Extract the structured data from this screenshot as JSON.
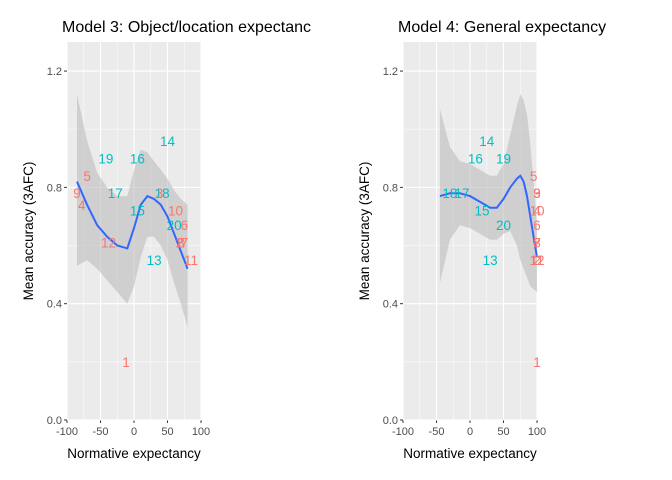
{
  "chart_data": [
    {
      "type": "scatter",
      "title": "Model 3: Object/location expectanc",
      "xlabel": "Normative expectancy",
      "ylabel": "Mean accuracy (3AFC)",
      "xlim": [
        -100,
        100
      ],
      "ylim": [
        0.0,
        1.3
      ],
      "xticks": [
        "-100",
        "-50",
        "0",
        "50",
        "100"
      ],
      "yticks": [
        "0.0",
        "0.4",
        "0.8",
        "1.2"
      ],
      "grid": true,
      "colors": {
        "red": "#f8766d",
        "teal": "#00bfc4",
        "smooth": "#3366ff",
        "band": "#bdbdbd",
        "panel": "#ebebeb"
      },
      "points": [
        {
          "label": "1",
          "x": -12,
          "y": 0.2,
          "color": "red"
        },
        {
          "label": "5",
          "x": -70,
          "y": 0.84,
          "color": "red"
        },
        {
          "label": "9",
          "x": -85,
          "y": 0.78,
          "color": "red"
        },
        {
          "label": "4",
          "x": -78,
          "y": 0.74,
          "color": "red"
        },
        {
          "label": "12",
          "x": -38,
          "y": 0.61,
          "color": "red"
        },
        {
          "label": "19",
          "x": -42,
          "y": 0.9,
          "color": "teal"
        },
        {
          "label": "16",
          "x": 5,
          "y": 0.9,
          "color": "teal"
        },
        {
          "label": "14",
          "x": 50,
          "y": 0.96,
          "color": "teal"
        },
        {
          "label": "17",
          "x": -28,
          "y": 0.78,
          "color": "teal"
        },
        {
          "label": "15",
          "x": 5,
          "y": 0.72,
          "color": "teal"
        },
        {
          "label": "18",
          "x": 42,
          "y": 0.78,
          "color": "teal"
        },
        {
          "label": "3",
          "x": 38,
          "y": 0.78,
          "color": "red"
        },
        {
          "label": "10",
          "x": 62,
          "y": 0.72,
          "color": "red"
        },
        {
          "label": "20",
          "x": 60,
          "y": 0.67,
          "color": "teal"
        },
        {
          "label": "6",
          "x": 75,
          "y": 0.67,
          "color": "red"
        },
        {
          "label": "2",
          "x": 68,
          "y": 0.61,
          "color": "red"
        },
        {
          "label": "7",
          "x": 75,
          "y": 0.61,
          "color": "red"
        },
        {
          "label": "8",
          "x": 70,
          "y": 0.61,
          "color": "red"
        },
        {
          "label": "13",
          "x": 30,
          "y": 0.55,
          "color": "teal"
        },
        {
          "label": "11",
          "x": 85,
          "y": 0.55,
          "color": "red"
        }
      ],
      "smooth_x": [
        -85,
        -70,
        -55,
        -40,
        -25,
        -10,
        0,
        10,
        20,
        30,
        40,
        50,
        60,
        70,
        80
      ],
      "smooth_y": [
        0.82,
        0.74,
        0.67,
        0.63,
        0.6,
        0.59,
        0.66,
        0.74,
        0.77,
        0.76,
        0.74,
        0.7,
        0.64,
        0.58,
        0.52
      ],
      "smooth_lower": [
        0.53,
        0.55,
        0.52,
        0.48,
        0.44,
        0.4,
        0.46,
        0.56,
        0.63,
        0.63,
        0.6,
        0.55,
        0.47,
        0.4,
        0.32
      ],
      "smooth_upper": [
        1.12,
        0.96,
        0.85,
        0.8,
        0.77,
        0.77,
        0.86,
        0.93,
        0.92,
        0.89,
        0.86,
        0.83,
        0.79,
        0.76,
        0.74
      ]
    },
    {
      "type": "scatter",
      "title": "Model 4: General expectancy",
      "xlabel": "Normative expectancy",
      "ylabel": "Mean accuracy (3AFC)",
      "xlim": [
        -100,
        100
      ],
      "ylim": [
        0.0,
        1.3
      ],
      "xticks": [
        "-100",
        "-50",
        "0",
        "50",
        "100"
      ],
      "yticks": [
        "0.0",
        "0.4",
        "0.8",
        "1.2"
      ],
      "grid": true,
      "colors": {
        "red": "#f8766d",
        "teal": "#00bfc4",
        "smooth": "#3366ff",
        "band": "#bdbdbd",
        "panel": "#ebebeb"
      },
      "points": [
        {
          "label": "14",
          "x": 25,
          "y": 0.96,
          "color": "teal"
        },
        {
          "label": "16",
          "x": 8,
          "y": 0.9,
          "color": "teal"
        },
        {
          "label": "19",
          "x": 50,
          "y": 0.9,
          "color": "teal"
        },
        {
          "label": "18",
          "x": -30,
          "y": 0.78,
          "color": "teal"
        },
        {
          "label": "17",
          "x": -12,
          "y": 0.78,
          "color": "teal"
        },
        {
          "label": "15",
          "x": 18,
          "y": 0.72,
          "color": "teal"
        },
        {
          "label": "20",
          "x": 50,
          "y": 0.67,
          "color": "teal"
        },
        {
          "label": "13",
          "x": 30,
          "y": 0.55,
          "color": "teal"
        },
        {
          "label": "5",
          "x": 95,
          "y": 0.84,
          "color": "red"
        },
        {
          "label": "9",
          "x": 100,
          "y": 0.78,
          "color": "red"
        },
        {
          "label": "3",
          "x": 100,
          "y": 0.78,
          "color": "red"
        },
        {
          "label": "4",
          "x": 100,
          "y": 0.72,
          "color": "red"
        },
        {
          "label": "10",
          "x": 100,
          "y": 0.72,
          "color": "red"
        },
        {
          "label": "6",
          "x": 100,
          "y": 0.67,
          "color": "red"
        },
        {
          "label": "7",
          "x": 100,
          "y": 0.61,
          "color": "red"
        },
        {
          "label": "8",
          "x": 100,
          "y": 0.61,
          "color": "red"
        },
        {
          "label": "2",
          "x": 100,
          "y": 0.55,
          "color": "red"
        },
        {
          "label": "12",
          "x": 100,
          "y": 0.55,
          "color": "red"
        },
        {
          "label": "11",
          "x": 100,
          "y": 0.55,
          "color": "red"
        },
        {
          "label": "1",
          "x": 100,
          "y": 0.2,
          "color": "red"
        }
      ],
      "smooth_x": [
        -45,
        -30,
        -15,
        0,
        15,
        30,
        40,
        50,
        60,
        70,
        75,
        80,
        85,
        90,
        95,
        100
      ],
      "smooth_y": [
        0.77,
        0.78,
        0.78,
        0.77,
        0.75,
        0.73,
        0.73,
        0.76,
        0.8,
        0.83,
        0.84,
        0.82,
        0.77,
        0.7,
        0.63,
        0.56
      ],
      "smooth_lower": [
        0.47,
        0.62,
        0.67,
        0.66,
        0.64,
        0.62,
        0.62,
        0.64,
        0.65,
        0.6,
        0.55,
        0.52,
        0.49,
        0.46,
        0.45,
        0.44
      ],
      "smooth_upper": [
        1.07,
        0.94,
        0.89,
        0.88,
        0.86,
        0.84,
        0.84,
        0.88,
        0.98,
        1.08,
        1.12,
        1.1,
        1.05,
        0.95,
        0.82,
        0.68
      ]
    }
  ]
}
